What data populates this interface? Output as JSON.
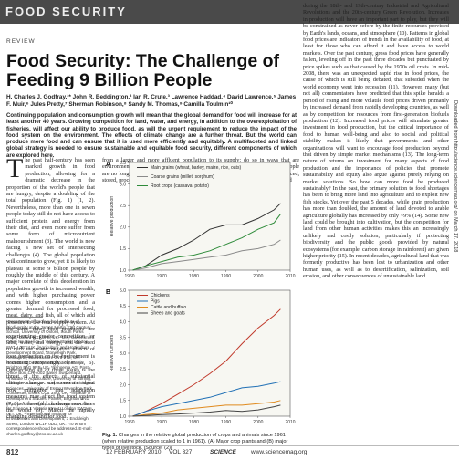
{
  "banner": {
    "label": "FOOD SECURITY"
  },
  "kicker": "REVIEW",
  "title": "Food Security: The Challenge of Feeding 9 Billion People",
  "authors": "H. Charles J. Godfray,¹* John R. Beddington,² Ian R. Crute,³ Lawrence Haddad,⁴ David Lawrence,⁵ James F. Muir,⁶ Jules Pretty,⁷ Sherman Robinson,⁸ Sandy M. Thomas,⁹ Camilla Toulmin¹⁰",
  "abstract": "Continuing population and consumption growth will mean that the global demand for food will increase for at least another 40 years. Growing competition for land, water, and energy, in addition to the overexploitation of fisheries, will affect our ability to produce food, as will the urgent requirement to reduce the impact of the food system on the environment. The effects of climate change are a further threat. But the world can produce more food and can ensure that it is used more efficiently and equitably. A multifaceted and linked global strategy is needed to ensure sustainable and equitable food security, different components of which are explored here.",
  "body": {
    "col1_dropcap": "T",
    "col1": "he past half-century has seen marked growth in food production, allowing for a dramatic decrease in the proportion of the world's people that are hungry, despite a doubling of the total population (Fig. 1) (1, 2). Nevertheless, more than one in seven people today still do not have access to sufficient protein and energy from their diet, and even more suffer from some form of micronutrient malnourishment (3). The world is now facing a new set of intersecting challenges (4). The global population will continue to grow, yet it is likely to plateau at some 9 billion people by roughly the middle of this century. A major correlate of this deceleration in population growth is increased wealth, and with higher purchasing power comes higher consumption and a greater demand for processed food, meat, dairy, and fish, all of which add pressure to the food supply system. At the same time, food producers are experiencing greater competition for land, water, and energy, and the need to curb the many negative effects of food production on the environment is becoming increasingly clear (5, 6). Overarching all of these issues is the threat of the effects of substantial climate change and concerns about how mitigation and adaptation measures may affect the food system (7, 8). A threefold challenge now faces the world (9): Match the rapidly changing demand for food",
    "col2": "from a larger and more affluent population to its supply; do so in ways that are environmentally and socially sustainable; and ensure that the world's poorest people are no longer hungry. This challenge requires changes in the way food is produced, stored, processed, distributed, and accessed that are as radical as those that occurred",
    "col3": "during the 18th- and 19th-century Industrial and Agricultural Revolutions and the 20th-century Green Revolution. Increases in production will have an important part to play, but they will be constrained as never before by the finite resources provided by Earth's lands, oceans, and atmosphere (10). Patterns in global food prices are indicators of trends in the availability of food, at least for those who can afford it and have access to world markets. Over the past century, gross food prices have generally fallen, leveling off in the past three decades but punctuated by price spikes such as that caused by the 1970s oil crisis. In mid-2008, there was an unexpected rapid rise in food prices, the cause of which is still being debated, that subsided when the world economy went into recession (11). However, many (but not all) commentators have predicted that this spike heralds a period of rising and more volatile food prices driven primarily by increased demand from rapidly developing countries, as well as by competition for resources from first-generation biofuels production (12). Increased food prices will stimulate greater investment in food production, but the critical importance of food to human well-being and also to social and political stability makes it likely that governments and other organizations will want to encourage food production beyond that driven by simple market mechanisms (13). The long-term nature of returns on investment for many aspects of food production and the importance of policies that promote sustainability and equity also argue against purely relying on market solutions. So how can more food be produced sustainably? In the past, the primary solution to food shortages has been to bring more land into agriculture and to exploit new fish stocks. Yet over the past 5 decades, while grain production has more than doubled, the amount of land devoted to arable agriculture globally has increased by only ~9% (14). Some new land could be brought into cultivation, but the competition for land from other human activities makes this an increasingly unlikely and costly solution, particularly if protecting biodiversity and the public goods provided by natural ecosystems (for example, carbon storage in rainforest) are given higher priority (15). In recent decades, agricultural land that was formerly productive has been lost to urbanization and other human uses, as well as to desertification, salinization, soil erosion, and other consequences of unsustainable land"
  },
  "footnotes": "¹Department of Zoology and Institute of Biodiversity at the James Martin 21st Century School, University of Oxford, South Parks Road, Oxford OX1 3PS, UK. ²U.K. Government Office for Science, 1 Victoria Street, London SW1H 0ET, UK. ³Agriculture and Horticulture Development Board, Stoneleigh Park, Kenilworth, Warwickshire CV8 2TL, UK. ⁴Institute of Development Studies, Falmer, Brighton BN1 9RE, UK. ⁵Syngenta AG, Post Office Box, CH-4002 Basel, Switzerland. ⁶Institute of Aquaculture, University of Stirling, Stirling FK9 4LA, UK. ⁷Department of Biological Sciences, University of Essex, Wivenhoe Park, Colchester, Essex CO4 3SQ, UK. ⁸Institute of Development Studies, Falmer, Brighton BN1 9RE, UK. ⁹Foresight, U.K. Government Office for Science, 1 Victoria Street, London SW1H 0ET, UK. ¹⁰International Institute for Environment and Development, 3 Endsleigh Street, London WC1H 0DD, UK. *To whom correspondence should be addressed. E-mail: charles.godfray@zoo.ox.ac.uk",
  "figure": {
    "panel_a_label": "A",
    "panel_b_label": "B",
    "ylabel": "Relative production",
    "xticks": [
      "1960",
      "1970",
      "1980",
      "1990",
      "2000",
      "2010"
    ]
  },
  "chart_data": [
    {
      "type": "line",
      "panel": "A",
      "ylabel": "Relative production",
      "xlim": [
        1960,
        2010
      ],
      "ylim": [
        1.0,
        3.5
      ],
      "yticks": [
        "1.0",
        "1.5",
        "2.0",
        "2.5",
        "3.0",
        "3.5"
      ],
      "xticks": [
        "1960",
        "1970",
        "1980",
        "1990",
        "2000",
        "2010"
      ],
      "legend": "top-left",
      "series": [
        {
          "name": "Main grains (wheat, barley, maize, rice, oats)",
          "color": "#333333",
          "x": [
            1961,
            1965,
            1970,
            1975,
            1980,
            1985,
            1990,
            1995,
            2000,
            2005,
            2007
          ],
          "y": [
            1.0,
            1.1,
            1.35,
            1.5,
            1.7,
            1.95,
            2.05,
            2.05,
            2.2,
            2.4,
            2.55
          ]
        },
        {
          "name": "Coarse grains (millet, sorghum)",
          "color": "#8a8a8a",
          "x": [
            1961,
            1965,
            1970,
            1975,
            1980,
            1985,
            1990,
            1995,
            2000,
            2005,
            2007
          ],
          "y": [
            1.0,
            1.05,
            1.15,
            1.2,
            1.25,
            1.3,
            1.35,
            1.45,
            1.5,
            1.6,
            1.7
          ]
        },
        {
          "name": "Root crops (cassava, potato)",
          "color": "#2e8b3a",
          "x": [
            1961,
            1965,
            1970,
            1975,
            1980,
            1985,
            1990,
            1995,
            2000,
            2005,
            2007
          ],
          "y": [
            1.0,
            1.1,
            1.2,
            1.3,
            1.35,
            1.45,
            1.6,
            1.75,
            1.95,
            2.1,
            2.3
          ]
        }
      ]
    },
    {
      "type": "line",
      "panel": "B",
      "ylabel": "Relative numbers",
      "xlim": [
        1960,
        2010
      ],
      "ylim": [
        1.0,
        5.0
      ],
      "yticks": [
        "1.0",
        "1.5",
        "2.0",
        "2.5",
        "3.0",
        "3.5",
        "4.0",
        "4.5",
        "5.0"
      ],
      "xticks": [
        "1960",
        "1970",
        "1980",
        "1990",
        "2000",
        "2010"
      ],
      "legend": "top-left",
      "series": [
        {
          "name": "Chickens",
          "color": "#c0392b",
          "x": [
            1961,
            1965,
            1970,
            1975,
            1980,
            1985,
            1990,
            1995,
            2000,
            2005,
            2007
          ],
          "y": [
            1.0,
            1.15,
            1.4,
            1.7,
            2.0,
            2.35,
            2.75,
            3.3,
            3.8,
            4.2,
            4.4
          ]
        },
        {
          "name": "Pigs",
          "color": "#1f6fb5",
          "x": [
            1961,
            1965,
            1970,
            1975,
            1980,
            1985,
            1990,
            1995,
            2000,
            2005,
            2007
          ],
          "y": [
            1.0,
            1.15,
            1.3,
            1.4,
            1.5,
            1.6,
            1.75,
            1.9,
            1.95,
            2.05,
            2.1
          ]
        },
        {
          "name": "Cattle and buffalo",
          "color": "#e08a1e",
          "x": [
            1961,
            1965,
            1970,
            1975,
            1980,
            1985,
            1990,
            1995,
            2000,
            2005,
            2007
          ],
          "y": [
            1.0,
            1.05,
            1.1,
            1.2,
            1.25,
            1.3,
            1.35,
            1.35,
            1.4,
            1.45,
            1.5
          ]
        },
        {
          "name": "Sheep and goats",
          "color": "#444444",
          "x": [
            1961,
            1965,
            1970,
            1975,
            1980,
            1985,
            1990,
            1995,
            2000,
            2005,
            2007
          ],
          "y": [
            1.0,
            1.02,
            1.05,
            1.07,
            1.1,
            1.13,
            1.18,
            1.15,
            1.2,
            1.3,
            1.35
          ]
        }
      ]
    }
  ],
  "caption": {
    "lead": "Fig. 1.",
    "text": " Changes in the relative global production of crops and animals since 1961 (when relative production scaled to 1 in 1961). (A) Major crop plants and (B) major types of livestock. [Source: (2)]"
  },
  "sidenote": "Downloaded from http://science.sciencemag.org/ on March 17, 2018",
  "footer": {
    "page": "812",
    "date": "12 FEBRUARY 2010",
    "volume": "VOL 327",
    "journal": "SCIENCE",
    "site": "www.sciencemag.org"
  }
}
